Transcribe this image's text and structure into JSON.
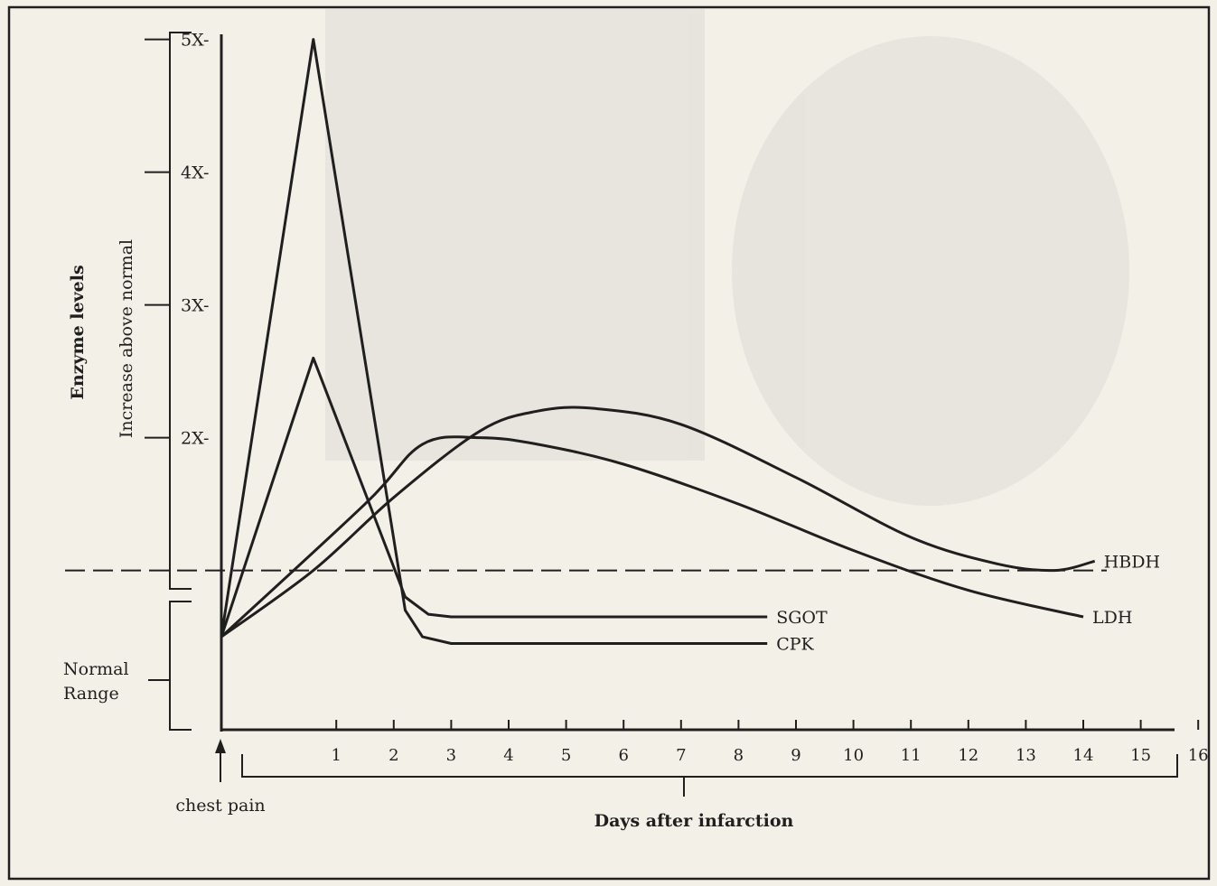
{
  "chart_data": {
    "type": "line",
    "ylabel_group": "Enzyme levels",
    "ylabel": "Increase above normal",
    "xlabel": "Days after infarction",
    "y_ticks": [
      {
        "value": 2,
        "label": "2X-"
      },
      {
        "value": 3,
        "label": "3X-"
      },
      {
        "value": 4,
        "label": "4X-"
      },
      {
        "value": 5,
        "label": "5X-"
      }
    ],
    "ylim": [
      0,
      5.2
    ],
    "normal_line_value": 1,
    "normal_range_label_line1": "Normal",
    "normal_range_label_line2": "Range",
    "x_ticks": [
      "1",
      "2",
      "3",
      "4",
      "5",
      "6",
      "7",
      "8",
      "9",
      "10",
      "11",
      "12",
      "13",
      "14",
      "15",
      "16"
    ],
    "xlim": [
      -1,
      16.5
    ],
    "onset_day": -1,
    "onset_label": "chest pain",
    "series": [
      {
        "name": "CPK",
        "x": [
          -1,
          0.6,
          2.2,
          2.5,
          3.0,
          8.5
        ],
        "y": [
          0.5,
          5.0,
          0.7,
          0.5,
          0.45,
          0.45
        ]
      },
      {
        "name": "SGOT",
        "x": [
          -1,
          0.6,
          2.2,
          2.6,
          3.0,
          8.5
        ],
        "y": [
          0.5,
          2.6,
          0.8,
          0.67,
          0.65,
          0.65
        ]
      },
      {
        "name": "LDH",
        "x": [
          -1,
          1.5,
          2.5,
          3.5,
          4.5,
          6,
          8,
          10,
          12,
          14
        ],
        "y": [
          0.5,
          1.5,
          1.95,
          2.0,
          1.95,
          1.8,
          1.5,
          1.15,
          0.85,
          0.65
        ]
      },
      {
        "name": "HBDH",
        "x": [
          -1,
          0.6,
          2,
          3.5,
          4.5,
          5.5,
          7,
          9,
          11,
          12.5,
          13.5,
          14.2
        ],
        "y": [
          0.5,
          1.0,
          1.55,
          2.05,
          2.2,
          2.22,
          2.1,
          1.7,
          1.25,
          1.05,
          1.0,
          1.07
        ]
      }
    ],
    "grid": false,
    "legend": "inline labels at line ends"
  },
  "colors": {
    "line": "#1f1f1f",
    "background": "#f3f0e8"
  }
}
